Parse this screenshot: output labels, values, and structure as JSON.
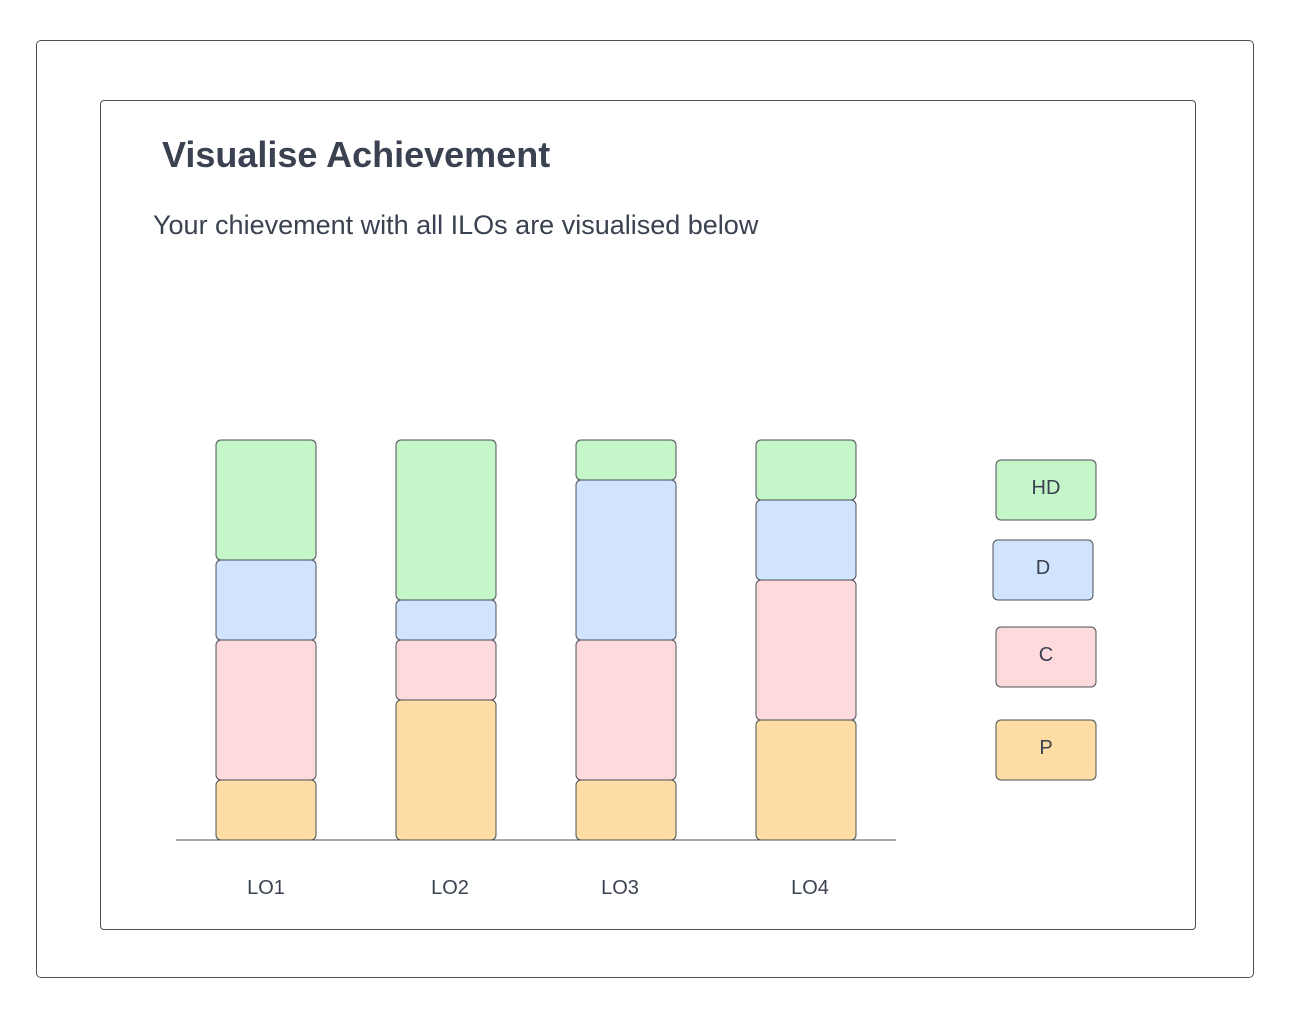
{
  "header": {
    "title": "Visualise Achievement",
    "subtitle": "Your chievement with all ILOs are visualised below"
  },
  "chart_data": {
    "type": "bar",
    "stacked": true,
    "categories": [
      "LO1",
      "LO2",
      "LO3",
      "LO4"
    ],
    "series": [
      {
        "name": "P",
        "color": "#fddda3",
        "values": [
          15,
          35,
          15,
          30
        ]
      },
      {
        "name": "C",
        "color": "#ffdadd",
        "values": [
          35,
          15,
          35,
          35
        ]
      },
      {
        "name": "D",
        "color": "#d0e4fe",
        "values": [
          20,
          10,
          40,
          20
        ]
      },
      {
        "name": "HD",
        "color": "#c4f6c9",
        "values": [
          30,
          40,
          10,
          15
        ]
      }
    ],
    "legend_order": [
      "HD",
      "D",
      "C",
      "P"
    ],
    "ylim": [
      0,
      100
    ],
    "grid": false,
    "legend_position": "right"
  }
}
